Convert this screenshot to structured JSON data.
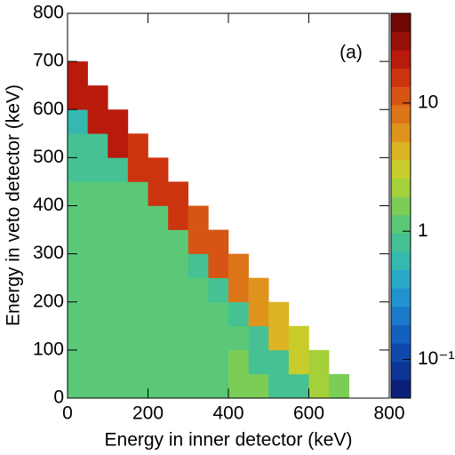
{
  "chart_data": {
    "type": "heatmap",
    "xlabel": "Energy in inner detector (keV)",
    "ylabel": "Energy in veto detector (keV)",
    "annotation": "(a)",
    "xlim": [
      0,
      800
    ],
    "ylim": [
      0,
      800
    ],
    "xticks": [
      0,
      200,
      400,
      600,
      800
    ],
    "yticks": [
      0,
      100,
      200,
      300,
      400,
      500,
      600,
      700,
      800
    ],
    "zlim": [
      0.05,
      50
    ],
    "zscale": "log",
    "zticks": [
      {
        "value": 0.1,
        "label": "10⁻¹"
      },
      1,
      10
    ],
    "palette": [
      "#0b1f78",
      "#0d3596",
      "#1049ae",
      "#1460bf",
      "#1a79c9",
      "#2192cf",
      "#2aa8c8",
      "#35b8b0",
      "#45c193",
      "#5ac877",
      "#7ccd56",
      "#a4d03a",
      "#c8cd2c",
      "#dcb423",
      "#de941c",
      "#dc7418",
      "#d65514",
      "#cc3410",
      "#b81a0c",
      "#98100a",
      "#700806"
    ],
    "z": [
      [
        1.2,
        1.2,
        1.2,
        1.2,
        1.2,
        1.2,
        1.2,
        1.2,
        1.5,
        1.5,
        0.8,
        0.8,
        2,
        1.5,
        0,
        0
      ],
      [
        1.2,
        1.2,
        1.2,
        1.2,
        1.2,
        1.2,
        1.2,
        1.2,
        1.5,
        0.8,
        0.8,
        3,
        2,
        0,
        0,
        0
      ],
      [
        1.2,
        1.2,
        1.2,
        1.2,
        1.2,
        1.2,
        1.2,
        1.2,
        1.2,
        0.8,
        4,
        3,
        0,
        0,
        0,
        0
      ],
      [
        1.2,
        1.2,
        1.2,
        1.2,
        1.2,
        1.2,
        1.2,
        1.2,
        0.8,
        6,
        4,
        0,
        0,
        0,
        0,
        0
      ],
      [
        1.2,
        1.2,
        1.2,
        1.2,
        1.2,
        1.2,
        1.2,
        0.8,
        8,
        6,
        0,
        0,
        0,
        0,
        0,
        0
      ],
      [
        1.2,
        1.2,
        1.2,
        1.2,
        1.2,
        1.2,
        0.8,
        10,
        8,
        0,
        0,
        0,
        0,
        0,
        0,
        0
      ],
      [
        1.2,
        1.2,
        1.2,
        1.2,
        1.2,
        1.2,
        12,
        10,
        0,
        0,
        0,
        0,
        0,
        0,
        0,
        0
      ],
      [
        1.2,
        1.2,
        1.2,
        1.2,
        1.2,
        14,
        12,
        0,
        0,
        0,
        0,
        0,
        0,
        0,
        0,
        0
      ],
      [
        1.2,
        1.2,
        1.2,
        1.2,
        16,
        14,
        0,
        0,
        0,
        0,
        0,
        0,
        0,
        0,
        0,
        0
      ],
      [
        0.8,
        0.8,
        0.8,
        18,
        16,
        0,
        0,
        0,
        0,
        0,
        0,
        0,
        0,
        0,
        0,
        0
      ],
      [
        0.8,
        0.8,
        20,
        18,
        0,
        0,
        0,
        0,
        0,
        0,
        0,
        0,
        0,
        0,
        0,
        0
      ],
      [
        0.5,
        22,
        20,
        0,
        0,
        0,
        0,
        0,
        0,
        0,
        0,
        0,
        0,
        0,
        0,
        0
      ],
      [
        25,
        22,
        0,
        0,
        0,
        0,
        0,
        0,
        0,
        0,
        0,
        0,
        0,
        0,
        0,
        0
      ],
      [
        25,
        0,
        0,
        0,
        0,
        0,
        0,
        0,
        0,
        0,
        0,
        0,
        0,
        0,
        0,
        0
      ],
      [
        0,
        0,
        0,
        0,
        0,
        0,
        0,
        0,
        0,
        0,
        0,
        0,
        0,
        0,
        0,
        0
      ],
      [
        0,
        0,
        0,
        0,
        0,
        0,
        0,
        0,
        0,
        0,
        0,
        0,
        0,
        0,
        0,
        0
      ]
    ]
  }
}
